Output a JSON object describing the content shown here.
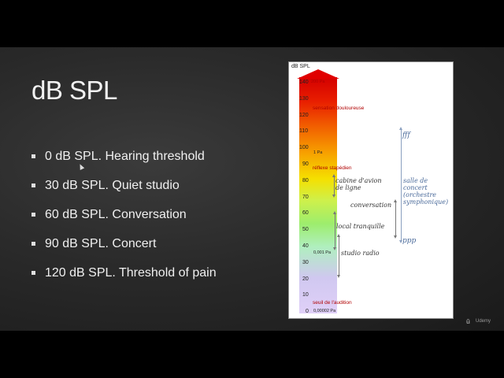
{
  "slide": {
    "title": "dB SPL",
    "bullets": [
      "0 dB SPL. Hearing threshold",
      "30 dB SPL. Quiet studio",
      "60 dB SPL. Conversation",
      "90 dB SPL. Concert",
      "120 dB SPL. Threshold of pain"
    ]
  },
  "figure": {
    "unit": "dB SPL",
    "ticks": [
      "140",
      "130",
      "120",
      "110",
      "100",
      "90",
      "80",
      "70",
      "60",
      "50",
      "40",
      "30",
      "20",
      "10",
      "0"
    ],
    "markers": {
      "pa_20": "200 Pa",
      "pa_1": "1 Pa",
      "pa_001": "0,001 Pa",
      "pa_00002": "0,00002 Pa"
    },
    "labels": {
      "pain": "sensation douloureuse",
      "reflex": "réflexe stapédien",
      "hearing": "seuil de l'audition",
      "cabin": "cabine d'avion\nde ligne",
      "conversation": "conversation",
      "quiet_room": "local tranquille",
      "radio_studio": "studio radio",
      "concert_hall": "salle de\nconcert\n(orchestre\nsymphonique)",
      "fff": "fff",
      "ppp": "ppp"
    },
    "colors": {
      "arrow": "#e00000",
      "label_red": "#b00000",
      "dynamics_blue": "#4a6a9a"
    }
  },
  "watermark": {
    "logo": "ū",
    "text": "Udemy"
  }
}
